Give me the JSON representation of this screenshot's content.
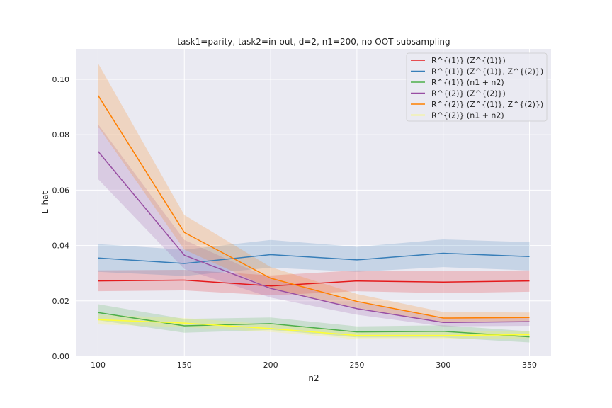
{
  "chart_data": {
    "type": "line",
    "title": "task1=parity, task2=in-out, d=2, n1=200, no OOT subsampling",
    "xlabel": "n2",
    "ylabel": "L_hat",
    "x": [
      100,
      150,
      200,
      250,
      300,
      350
    ],
    "xticks": [
      "100",
      "150",
      "200",
      "250",
      "300",
      "350"
    ],
    "yticks": [
      "0.00",
      "0.02",
      "0.04",
      "0.06",
      "0.08",
      "0.10"
    ],
    "xlim": [
      87.5,
      362.5
    ],
    "ylim": [
      0.0,
      0.111
    ],
    "grid": true,
    "legend_position": "top-right",
    "series": [
      {
        "name": "R^{(1)} (Z^{(1)})",
        "color": "#e41a1c",
        "values": [
          0.0272,
          0.0275,
          0.0254,
          0.0272,
          0.0268,
          0.0272
        ],
        "lower": [
          0.0235,
          0.0238,
          0.022,
          0.0235,
          0.0228,
          0.0233
        ],
        "upper": [
          0.031,
          0.0312,
          0.0292,
          0.031,
          0.0308,
          0.031
        ]
      },
      {
        "name": "R^{(1)} (Z^{(1)}, Z^{(2)})",
        "color": "#377eb8",
        "values": [
          0.0355,
          0.0335,
          0.0367,
          0.0348,
          0.0372,
          0.036
        ],
        "lower": [
          0.0305,
          0.029,
          0.032,
          0.0305,
          0.0322,
          0.031
        ],
        "upper": [
          0.0405,
          0.0385,
          0.042,
          0.0395,
          0.0422,
          0.0412
        ]
      },
      {
        "name": "R^{(1)} (n1 + n2)",
        "color": "#4daf4a",
        "values": [
          0.0158,
          0.011,
          0.0118,
          0.0088,
          0.009,
          0.007
        ],
        "lower": [
          0.013,
          0.0085,
          0.0095,
          0.0068,
          0.0068,
          0.005
        ],
        "upper": [
          0.0188,
          0.0135,
          0.014,
          0.0108,
          0.0112,
          0.009
        ]
      },
      {
        "name": "R^{(2)} (Z^{(2)})",
        "color": "#984ea3",
        "values": [
          0.074,
          0.0365,
          0.0245,
          0.0172,
          0.0122,
          0.0125
        ],
        "lower": [
          0.064,
          0.0315,
          0.0212,
          0.015,
          0.0108,
          0.011
        ],
        "upper": [
          0.0838,
          0.042,
          0.028,
          0.0195,
          0.014,
          0.0142
        ]
      },
      {
        "name": "R^{(2)} (Z^{(1)}, Z^{(2)})",
        "color": "#ff7f00",
        "values": [
          0.0942,
          0.0447,
          0.0282,
          0.0198,
          0.0138,
          0.014
        ],
        "lower": [
          0.083,
          0.0385,
          0.0245,
          0.0175,
          0.012,
          0.0125
        ],
        "upper": [
          0.1058,
          0.051,
          0.0322,
          0.0225,
          0.016,
          0.0158
        ]
      },
      {
        "name": "R^{(2)} (n1 + n2)",
        "color": "#ffff33",
        "values": [
          0.0132,
          0.012,
          0.01,
          0.0075,
          0.0075,
          0.0078
        ],
        "lower": [
          0.0115,
          0.0105,
          0.0088,
          0.0062,
          0.0062,
          0.0065
        ],
        "upper": [
          0.015,
          0.0138,
          0.0115,
          0.009,
          0.009,
          0.0092
        ]
      }
    ]
  }
}
